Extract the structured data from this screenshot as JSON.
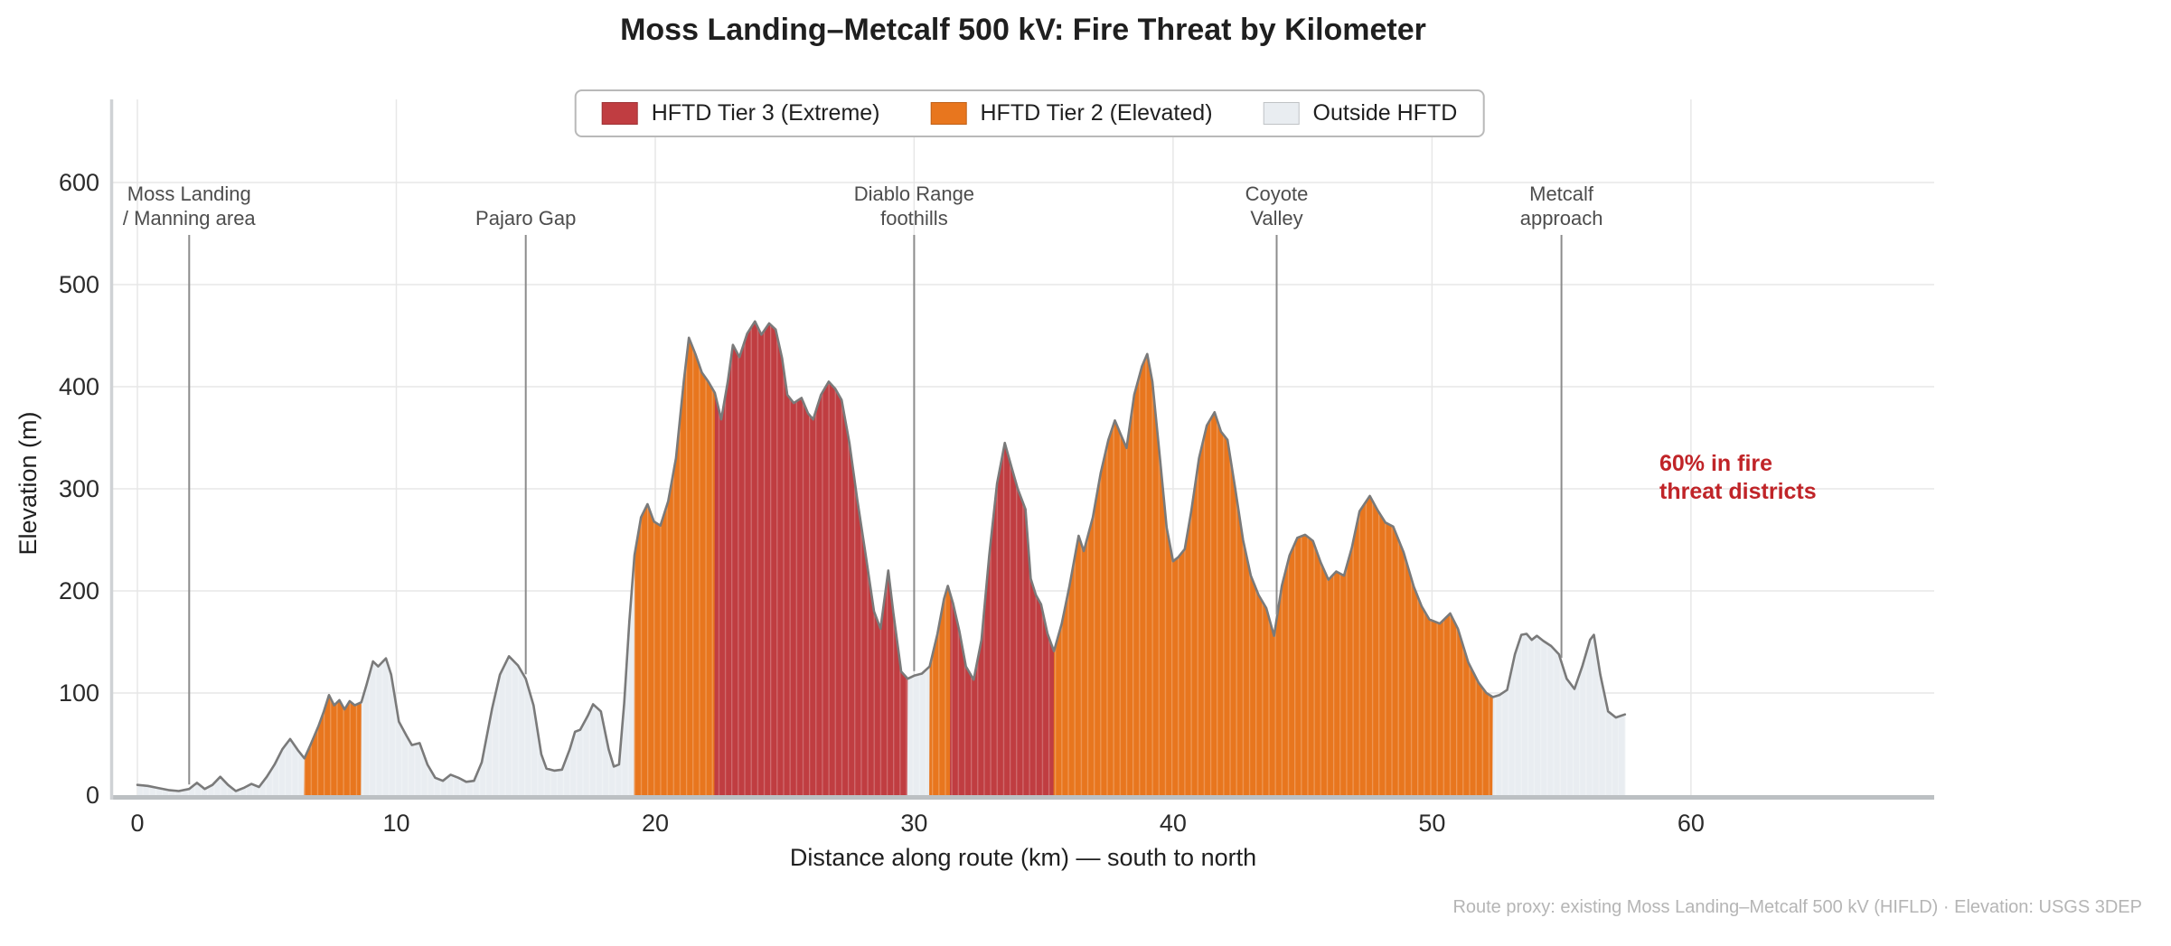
{
  "chart_data": {
    "type": "area",
    "title": "Moss Landing–Metcalf 500 kV: Fire Threat by Kilometer",
    "xlabel": "Distance along route (km) — south to north",
    "ylabel": "Elevation (m)",
    "x_ticks": [
      0,
      10,
      20,
      30,
      40,
      50,
      60
    ],
    "y_ticks": [
      0,
      100,
      200,
      300,
      400,
      500,
      600
    ],
    "xlim": [
      0,
      69.5
    ],
    "ylim": [
      0,
      680
    ],
    "grid": true,
    "legend_position": "top-center",
    "series_name": "Route elevation profile",
    "colors": {
      "tier3": "#c03d41",
      "tier2": "#e8761e",
      "outside": "#e9edf1",
      "line": "#7a7a7a"
    },
    "legend": [
      {
        "label": "HFTD Tier 3 (Extreme)",
        "color_key": "tier3"
      },
      {
        "label": "HFTD Tier 2 (Elevated)",
        "color_key": "tier2"
      },
      {
        "label": "Outside HFTD",
        "color_key": "outside"
      }
    ],
    "segments": [
      {
        "tier": "outside",
        "from": 0,
        "to": 6.45
      },
      {
        "tier": "tier2",
        "from": 6.45,
        "to": 8.65
      },
      {
        "tier": "outside",
        "from": 8.65,
        "to": 19.2
      },
      {
        "tier": "tier2",
        "from": 19.2,
        "to": 22.3
      },
      {
        "tier": "tier3",
        "from": 22.3,
        "to": 29.75
      },
      {
        "tier": "outside",
        "from": 29.75,
        "to": 30.6
      },
      {
        "tier": "tier2",
        "from": 30.6,
        "to": 31.4
      },
      {
        "tier": "tier3",
        "from": 31.4,
        "to": 35.4
      },
      {
        "tier": "tier2",
        "from": 35.4,
        "to": 52.35
      },
      {
        "tier": "outside",
        "from": 52.35,
        "to": 57.45
      }
    ],
    "profile": [
      [
        0,
        10
      ],
      [
        0.4,
        9
      ],
      [
        0.8,
        7
      ],
      [
        1.2,
        5
      ],
      [
        1.6,
        4
      ],
      [
        2.0,
        6
      ],
      [
        2.3,
        12
      ],
      [
        2.6,
        6
      ],
      [
        2.9,
        10
      ],
      [
        3.2,
        18
      ],
      [
        3.5,
        10
      ],
      [
        3.8,
        4
      ],
      [
        4.1,
        7
      ],
      [
        4.4,
        11
      ],
      [
        4.7,
        8
      ],
      [
        5.0,
        18
      ],
      [
        5.3,
        30
      ],
      [
        5.6,
        45
      ],
      [
        5.9,
        55
      ],
      [
        6.2,
        44
      ],
      [
        6.45,
        36
      ],
      [
        6.7,
        50
      ],
      [
        7.0,
        68
      ],
      [
        7.2,
        82
      ],
      [
        7.4,
        98
      ],
      [
        7.6,
        88
      ],
      [
        7.8,
        93
      ],
      [
        8.0,
        84
      ],
      [
        8.2,
        92
      ],
      [
        8.4,
        88
      ],
      [
        8.65,
        91
      ],
      [
        8.85,
        108
      ],
      [
        9.1,
        131
      ],
      [
        9.3,
        126
      ],
      [
        9.6,
        134
      ],
      [
        9.8,
        118
      ],
      [
        10.1,
        72
      ],
      [
        10.4,
        58
      ],
      [
        10.6,
        49
      ],
      [
        10.9,
        51
      ],
      [
        11.2,
        30
      ],
      [
        11.5,
        17
      ],
      [
        11.8,
        14
      ],
      [
        12.1,
        20
      ],
      [
        12.4,
        17
      ],
      [
        12.7,
        13
      ],
      [
        13.0,
        14
      ],
      [
        13.3,
        32
      ],
      [
        13.7,
        85
      ],
      [
        14.0,
        118
      ],
      [
        14.35,
        136
      ],
      [
        14.7,
        127
      ],
      [
        15.0,
        114
      ],
      [
        15.3,
        88
      ],
      [
        15.6,
        40
      ],
      [
        15.8,
        26
      ],
      [
        16.1,
        24
      ],
      [
        16.4,
        25
      ],
      [
        16.7,
        45
      ],
      [
        16.9,
        62
      ],
      [
        17.1,
        64
      ],
      [
        17.4,
        78
      ],
      [
        17.6,
        89
      ],
      [
        17.9,
        82
      ],
      [
        18.2,
        45
      ],
      [
        18.4,
        28
      ],
      [
        18.6,
        30
      ],
      [
        18.8,
        90
      ],
      [
        19.0,
        170
      ],
      [
        19.2,
        235
      ],
      [
        19.45,
        272
      ],
      [
        19.7,
        285
      ],
      [
        19.95,
        268
      ],
      [
        20.2,
        264
      ],
      [
        20.5,
        288
      ],
      [
        20.8,
        330
      ],
      [
        21.1,
        405
      ],
      [
        21.3,
        448
      ],
      [
        21.55,
        432
      ],
      [
        21.8,
        414
      ],
      [
        22.05,
        405
      ],
      [
        22.3,
        394
      ],
      [
        22.55,
        368
      ],
      [
        22.8,
        405
      ],
      [
        23.0,
        441
      ],
      [
        23.25,
        429
      ],
      [
        23.55,
        452
      ],
      [
        23.85,
        464
      ],
      [
        24.1,
        451
      ],
      [
        24.4,
        462
      ],
      [
        24.65,
        456
      ],
      [
        24.9,
        428
      ],
      [
        25.1,
        392
      ],
      [
        25.35,
        384
      ],
      [
        25.65,
        389
      ],
      [
        25.9,
        374
      ],
      [
        26.1,
        368
      ],
      [
        26.4,
        392
      ],
      [
        26.7,
        405
      ],
      [
        26.95,
        398
      ],
      [
        27.2,
        387
      ],
      [
        27.5,
        345
      ],
      [
        27.8,
        290
      ],
      [
        28.1,
        240
      ],
      [
        28.45,
        180
      ],
      [
        28.7,
        163
      ],
      [
        29.0,
        220
      ],
      [
        29.2,
        178
      ],
      [
        29.5,
        121
      ],
      [
        29.75,
        114
      ],
      [
        30.0,
        117
      ],
      [
        30.3,
        119
      ],
      [
        30.6,
        126
      ],
      [
        30.9,
        158
      ],
      [
        31.15,
        192
      ],
      [
        31.3,
        205
      ],
      [
        31.5,
        188
      ],
      [
        31.75,
        160
      ],
      [
        32.0,
        126
      ],
      [
        32.3,
        113
      ],
      [
        32.6,
        152
      ],
      [
        32.9,
        235
      ],
      [
        33.2,
        305
      ],
      [
        33.5,
        345
      ],
      [
        33.75,
        322
      ],
      [
        34.0,
        300
      ],
      [
        34.3,
        280
      ],
      [
        34.5,
        212
      ],
      [
        34.7,
        196
      ],
      [
        34.9,
        187
      ],
      [
        35.15,
        158
      ],
      [
        35.4,
        141
      ],
      [
        35.7,
        168
      ],
      [
        36.0,
        205
      ],
      [
        36.35,
        254
      ],
      [
        36.55,
        239
      ],
      [
        36.9,
        272
      ],
      [
        37.2,
        315
      ],
      [
        37.5,
        348
      ],
      [
        37.75,
        367
      ],
      [
        38.0,
        352
      ],
      [
        38.2,
        340
      ],
      [
        38.5,
        392
      ],
      [
        38.8,
        420
      ],
      [
        39.0,
        432
      ],
      [
        39.2,
        405
      ],
      [
        39.5,
        328
      ],
      [
        39.75,
        262
      ],
      [
        40.0,
        229
      ],
      [
        40.2,
        233
      ],
      [
        40.45,
        241
      ],
      [
        40.7,
        278
      ],
      [
        41.0,
        330
      ],
      [
        41.3,
        362
      ],
      [
        41.6,
        375
      ],
      [
        41.85,
        356
      ],
      [
        42.1,
        348
      ],
      [
        42.4,
        300
      ],
      [
        42.7,
        250
      ],
      [
        43.0,
        215
      ],
      [
        43.3,
        196
      ],
      [
        43.6,
        183
      ],
      [
        43.9,
        156
      ],
      [
        44.2,
        205
      ],
      [
        44.5,
        235
      ],
      [
        44.8,
        252
      ],
      [
        45.1,
        255
      ],
      [
        45.4,
        249
      ],
      [
        45.7,
        228
      ],
      [
        46.0,
        211
      ],
      [
        46.3,
        219
      ],
      [
        46.6,
        215
      ],
      [
        46.9,
        242
      ],
      [
        47.2,
        278
      ],
      [
        47.6,
        293
      ],
      [
        47.9,
        279
      ],
      [
        48.2,
        267
      ],
      [
        48.5,
        263
      ],
      [
        48.9,
        238
      ],
      [
        49.3,
        204
      ],
      [
        49.6,
        185
      ],
      [
        49.9,
        172
      ],
      [
        50.3,
        168
      ],
      [
        50.7,
        178
      ],
      [
        51.0,
        163
      ],
      [
        51.4,
        130
      ],
      [
        51.8,
        110
      ],
      [
        52.1,
        100
      ],
      [
        52.35,
        96
      ],
      [
        52.6,
        98
      ],
      [
        52.9,
        103
      ],
      [
        53.2,
        138
      ],
      [
        53.45,
        157
      ],
      [
        53.65,
        158
      ],
      [
        53.85,
        152
      ],
      [
        54.05,
        156
      ],
      [
        54.3,
        151
      ],
      [
        54.6,
        146
      ],
      [
        54.9,
        138
      ],
      [
        55.2,
        114
      ],
      [
        55.5,
        104
      ],
      [
        55.8,
        126
      ],
      [
        56.1,
        152
      ],
      [
        56.25,
        157
      ],
      [
        56.5,
        118
      ],
      [
        56.8,
        82
      ],
      [
        57.1,
        76
      ],
      [
        57.45,
        79
      ]
    ],
    "annotations": [
      {
        "lines": [
          "Moss Landing",
          "/ Manning area"
        ],
        "km": 2
      },
      {
        "lines": [
          "Pajaro Gap"
        ],
        "km": 15
      },
      {
        "lines": [
          "Diablo Range",
          "foothills"
        ],
        "km": 30
      },
      {
        "lines": [
          "Coyote",
          "Valley"
        ],
        "km": 44
      },
      {
        "lines": [
          "Metcalf",
          "approach"
        ],
        "km": 55
      }
    ],
    "note": {
      "lines": [
        "60% in fire",
        "threat districts"
      ],
      "color": "#c02428"
    }
  },
  "footer": {
    "text": "Route proxy: existing Moss Landing–Metcalf 500 kV (HIFLD) · Elevation: USGS 3DEP"
  }
}
